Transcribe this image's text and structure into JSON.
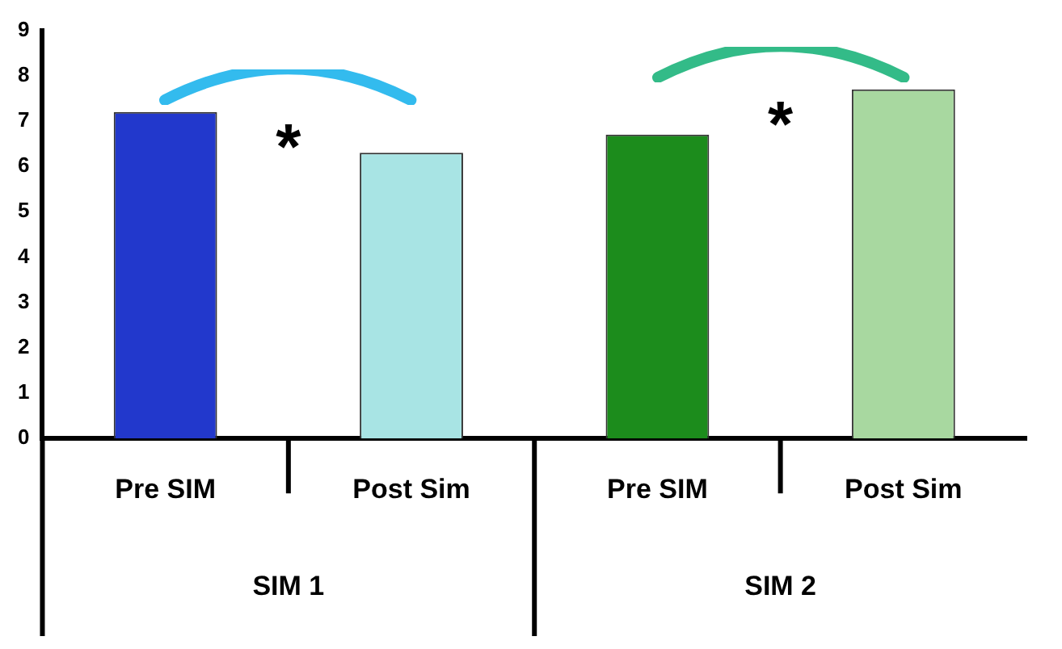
{
  "chart_data": {
    "type": "bar",
    "categories": [
      "Pre SIM",
      "Post Sim",
      "Pre SIM",
      "Post Sim"
    ],
    "values": [
      7.2,
      6.3,
      6.7,
      7.7
    ],
    "colors": [
      "#2238cc",
      "#a8e4e4",
      "#1c8c1c",
      "#a8d8a0"
    ],
    "ylim": [
      0,
      9
    ],
    "yticks": [
      0,
      1,
      2,
      3,
      4,
      5,
      6,
      7,
      8,
      9
    ],
    "grid": false,
    "legend": false,
    "annotations": [
      "*",
      "*",
      "SIM 1",
      "SIM 2"
    ]
  }
}
